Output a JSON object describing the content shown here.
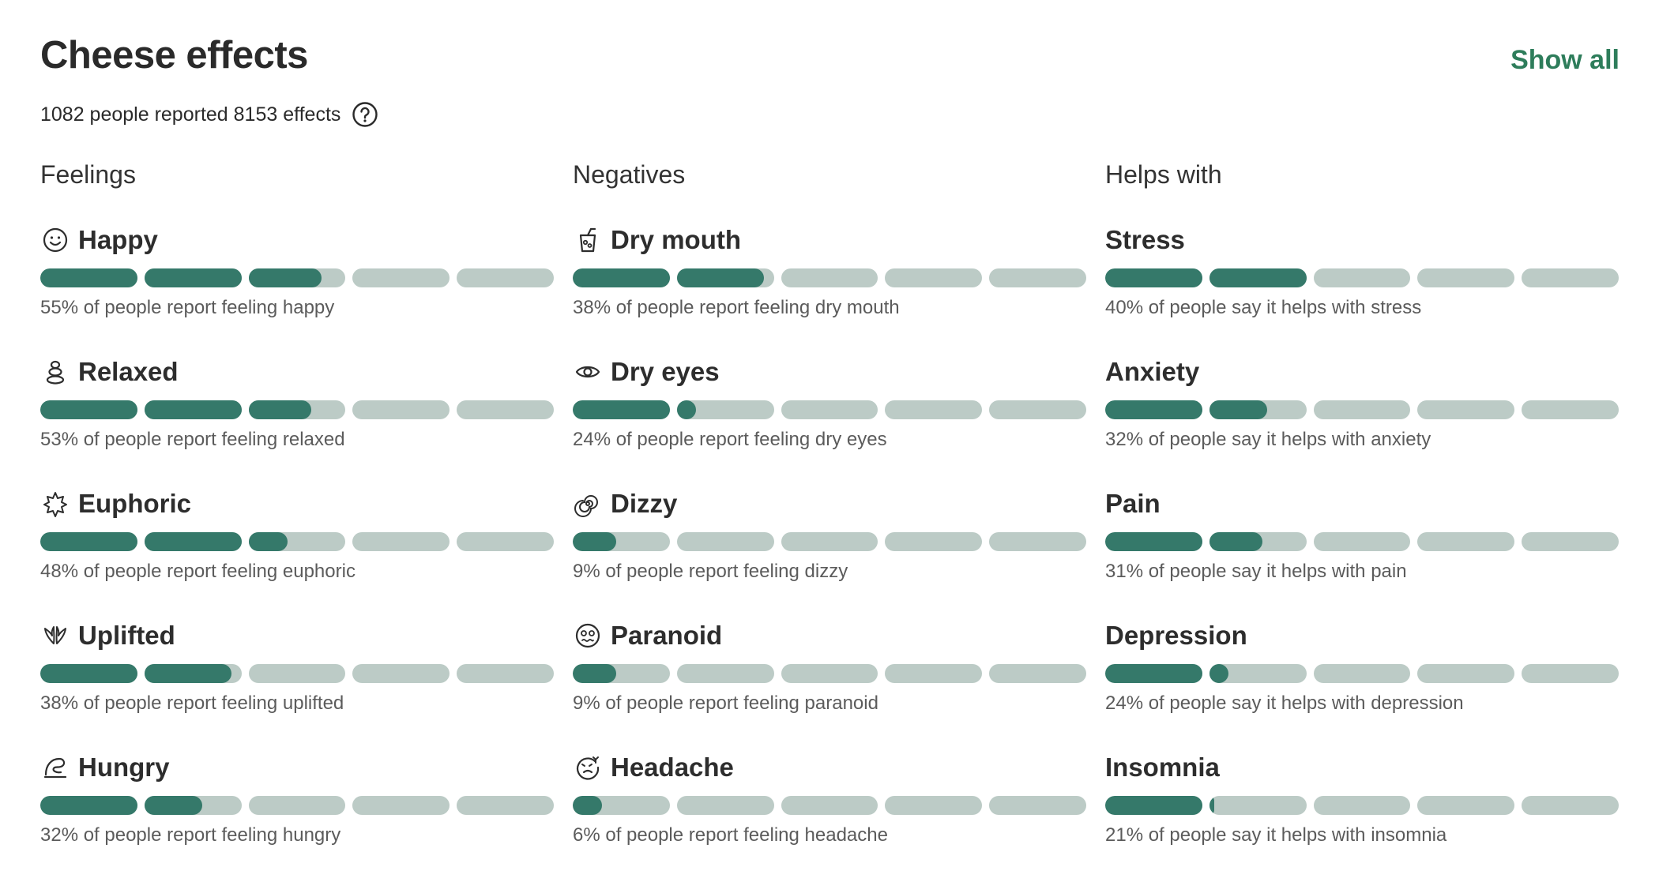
{
  "header": {
    "title": "Cheese effects",
    "show_all_label": "Show all",
    "summary": "1082 people reported 8153 effects"
  },
  "colors": {
    "accent": "#2e7d5b",
    "bar_fill": "#35796a",
    "bar_empty": "#bccbc6"
  },
  "columns": [
    {
      "title": "Feelings",
      "items": [
        {
          "name": "Happy",
          "icon": "happy-face-icon",
          "percent": 55,
          "description": "55% of people report feeling happy"
        },
        {
          "name": "Relaxed",
          "icon": "relaxed-stones-icon",
          "percent": 53,
          "description": "53% of people report feeling relaxed"
        },
        {
          "name": "Euphoric",
          "icon": "euphoric-burst-icon",
          "percent": 48,
          "description": "48% of people report feeling euphoric"
        },
        {
          "name": "Uplifted",
          "icon": "uplifted-wings-icon",
          "percent": 38,
          "description": "38% of people report feeling uplifted"
        },
        {
          "name": "Hungry",
          "icon": "hungry-icon",
          "percent": 32,
          "description": "32% of people report feeling hungry"
        }
      ]
    },
    {
      "title": "Negatives",
      "items": [
        {
          "name": "Dry mouth",
          "icon": "drink-cup-icon",
          "percent": 38,
          "description": "38% of people report feeling dry mouth"
        },
        {
          "name": "Dry eyes",
          "icon": "eye-icon",
          "percent": 24,
          "description": "24% of people report feeling dry eyes"
        },
        {
          "name": "Dizzy",
          "icon": "spiral-icon",
          "percent": 9,
          "description": "9% of people report feeling dizzy"
        },
        {
          "name": "Paranoid",
          "icon": "paranoid-face-icon",
          "percent": 9,
          "description": "9% of people report feeling paranoid"
        },
        {
          "name": "Headache",
          "icon": "headache-face-icon",
          "percent": 6,
          "description": "6% of people report feeling headache"
        }
      ]
    },
    {
      "title": "Helps with",
      "items": [
        {
          "name": "Stress",
          "icon": "",
          "percent": 40,
          "description": "40% of people say it helps with stress"
        },
        {
          "name": "Anxiety",
          "icon": "",
          "percent": 32,
          "description": "32% of people say it helps with anxiety"
        },
        {
          "name": "Pain",
          "icon": "",
          "percent": 31,
          "description": "31% of people say it helps with pain"
        },
        {
          "name": "Depression",
          "icon": "",
          "percent": 24,
          "description": "24% of people say it helps with depression"
        },
        {
          "name": "Insomnia",
          "icon": "",
          "percent": 21,
          "description": "21% of people say it helps with insomnia"
        }
      ]
    }
  ]
}
